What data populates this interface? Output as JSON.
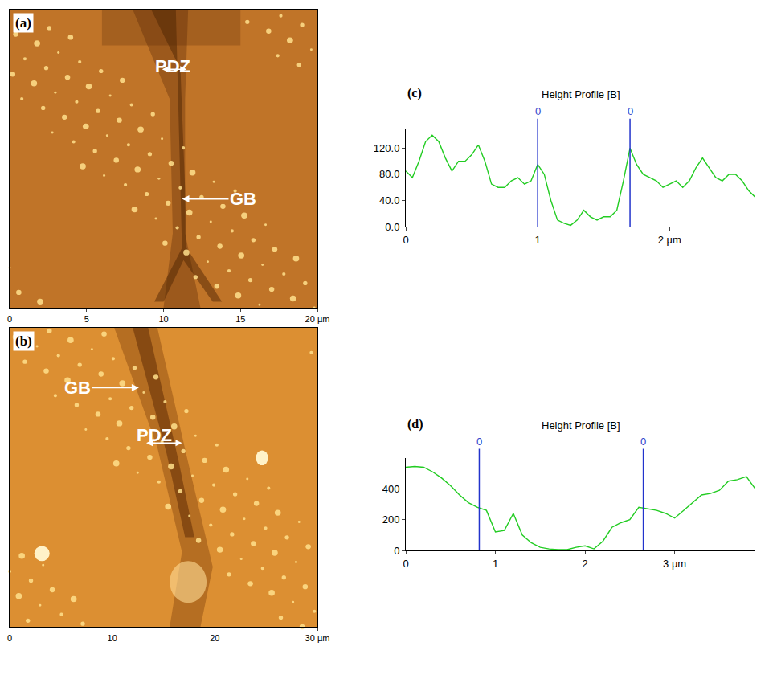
{
  "chart_data": [
    {
      "type": "image",
      "label": "(a)",
      "xlim": [
        0,
        20
      ],
      "ylim": [
        0,
        20
      ],
      "xticks": [
        0,
        5,
        10,
        15,
        {
          "value": 20,
          "label": "20 µm"
        }
      ],
      "tick_labels": "x",
      "annotations": [
        "PDZ",
        "GB"
      ]
    },
    {
      "type": "image",
      "label": "(b)",
      "xlim": [
        0,
        30
      ],
      "ylim": [
        0,
        30
      ],
      "xticks": [
        0,
        10,
        20,
        {
          "value": 30,
          "label": "30 µm"
        }
      ],
      "tick_labels": "x",
      "annotations": [
        "GB",
        "PDZ"
      ]
    },
    {
      "type": "line",
      "label": "(c)",
      "title": "Height Profile [B]",
      "color": "#22cc22",
      "x": [
        0,
        0.05,
        0.1,
        0.15,
        0.2,
        0.25,
        0.3,
        0.35,
        0.4,
        0.45,
        0.5,
        0.55,
        0.6,
        0.65,
        0.7,
        0.75,
        0.8,
        0.85,
        0.9,
        0.95,
        1.0,
        1.05,
        1.1,
        1.15,
        1.2,
        1.25,
        1.3,
        1.35,
        1.4,
        1.45,
        1.5,
        1.55,
        1.6,
        1.65,
        1.7,
        1.75,
        1.8,
        1.85,
        1.9,
        1.95,
        2.0,
        2.05,
        2.1,
        2.15,
        2.2,
        2.25,
        2.3,
        2.35,
        2.4,
        2.45,
        2.5,
        2.55,
        2.6,
        2.65
      ],
      "values": [
        85,
        75,
        100,
        130,
        140,
        130,
        105,
        85,
        100,
        100,
        110,
        125,
        100,
        65,
        60,
        60,
        70,
        75,
        65,
        70,
        95,
        80,
        40,
        10,
        5,
        2,
        10,
        25,
        15,
        10,
        15,
        15,
        25,
        70,
        120,
        95,
        80,
        75,
        70,
        60,
        65,
        70,
        60,
        70,
        90,
        105,
        90,
        75,
        70,
        80,
        80,
        70,
        55,
        45
      ],
      "xlim": [
        0,
        2.65
      ],
      "xticks": [
        0,
        1,
        {
          "value": 2,
          "label": "2 µm"
        }
      ],
      "ylim": [
        0,
        150
      ],
      "yticks": [
        {
          "value": 0,
          "label": "0.0"
        },
        {
          "value": 40,
          "label": "40.0"
        },
        {
          "value": 80,
          "label": "80.0"
        },
        {
          "value": 120,
          "label": "120.0"
        }
      ],
      "cursors": [
        {
          "x": 1.0,
          "label": "0"
        },
        {
          "x": 1.7,
          "label": "0"
        }
      ]
    },
    {
      "type": "line",
      "label": "(d)",
      "title": "Height Profile [B]",
      "color": "#22cc22",
      "x": [
        0,
        0.1,
        0.2,
        0.3,
        0.4,
        0.5,
        0.6,
        0.7,
        0.8,
        0.9,
        1.0,
        1.1,
        1.2,
        1.3,
        1.4,
        1.5,
        1.6,
        1.7,
        1.8,
        1.9,
        2.0,
        2.1,
        2.2,
        2.3,
        2.4,
        2.5,
        2.6,
        2.7,
        2.8,
        2.9,
        3.0,
        3.1,
        3.2,
        3.3,
        3.4,
        3.5,
        3.6,
        3.7,
        3.8,
        3.9
      ],
      "values": [
        540,
        545,
        540,
        510,
        470,
        420,
        360,
        310,
        280,
        260,
        120,
        130,
        240,
        100,
        50,
        20,
        10,
        5,
        5,
        20,
        30,
        10,
        60,
        150,
        180,
        200,
        280,
        270,
        260,
        240,
        210,
        260,
        310,
        360,
        370,
        390,
        450,
        460,
        480,
        400
      ],
      "xlim": [
        0,
        3.9
      ],
      "xticks": [
        0,
        1,
        2,
        {
          "value": 3,
          "label": "3 µm"
        }
      ],
      "ylim": [
        0,
        600
      ],
      "yticks": [
        0,
        200,
        400
      ],
      "cursors": [
        {
          "x": 0.82,
          "label": "0"
        },
        {
          "x": 2.65,
          "label": "0"
        }
      ]
    }
  ]
}
